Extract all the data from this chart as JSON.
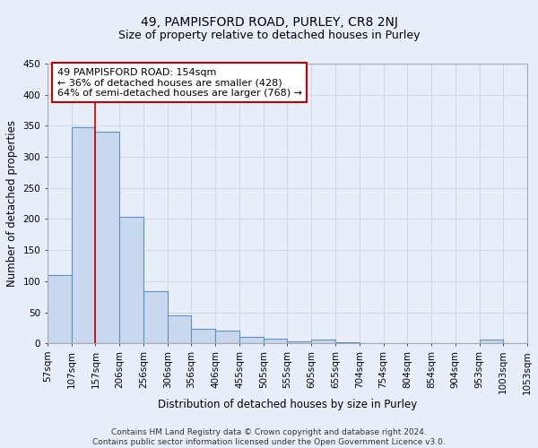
{
  "title_line1": "49, PAMPISFORD ROAD, PURLEY, CR8 2NJ",
  "title_line2": "Size of property relative to detached houses in Purley",
  "xlabel": "Distribution of detached houses by size in Purley",
  "ylabel": "Number of detached properties",
  "footnote": "Contains HM Land Registry data © Crown copyright and database right 2024.\nContains public sector information licensed under the Open Government Licence v3.0.",
  "bin_labels": [
    "57sqm",
    "107sqm",
    "157sqm",
    "206sqm",
    "256sqm",
    "306sqm",
    "356sqm",
    "406sqm",
    "455sqm",
    "505sqm",
    "555sqm",
    "605sqm",
    "655sqm",
    "704sqm",
    "754sqm",
    "804sqm",
    "854sqm",
    "904sqm",
    "953sqm",
    "1003sqm",
    "1053sqm"
  ],
  "bar_heights": [
    110,
    348,
    341,
    203,
    84,
    45,
    23,
    21,
    10,
    7,
    3,
    6,
    2,
    1,
    1,
    0,
    0,
    0,
    6,
    0
  ],
  "bar_color": "#c8d8ee",
  "bar_edge_color": "#6090c0",
  "redline_x": 2.0,
  "annotation_line1": "49 PAMPISFORD ROAD: 154sqm",
  "annotation_line2": "← 36% of detached houses are smaller (428)",
  "annotation_line3": "64% of semi-detached houses are larger (768) →",
  "annotation_box_color": "#ffffff",
  "annotation_box_edge": "#cc0000",
  "background_color": "#e8eef8",
  "plot_bg_color": "#e8eef8",
  "ylim": [
    0,
    450
  ],
  "yticks": [
    0,
    50,
    100,
    150,
    200,
    250,
    300,
    350,
    400,
    450
  ],
  "grid_color": "#d0d8e8",
  "redline_color": "#cc0000",
  "title_fontsize": 10,
  "subtitle_fontsize": 9,
  "axis_label_fontsize": 8.5,
  "tick_fontsize": 7.5,
  "annotation_fontsize": 8,
  "footnote_fontsize": 6.5
}
